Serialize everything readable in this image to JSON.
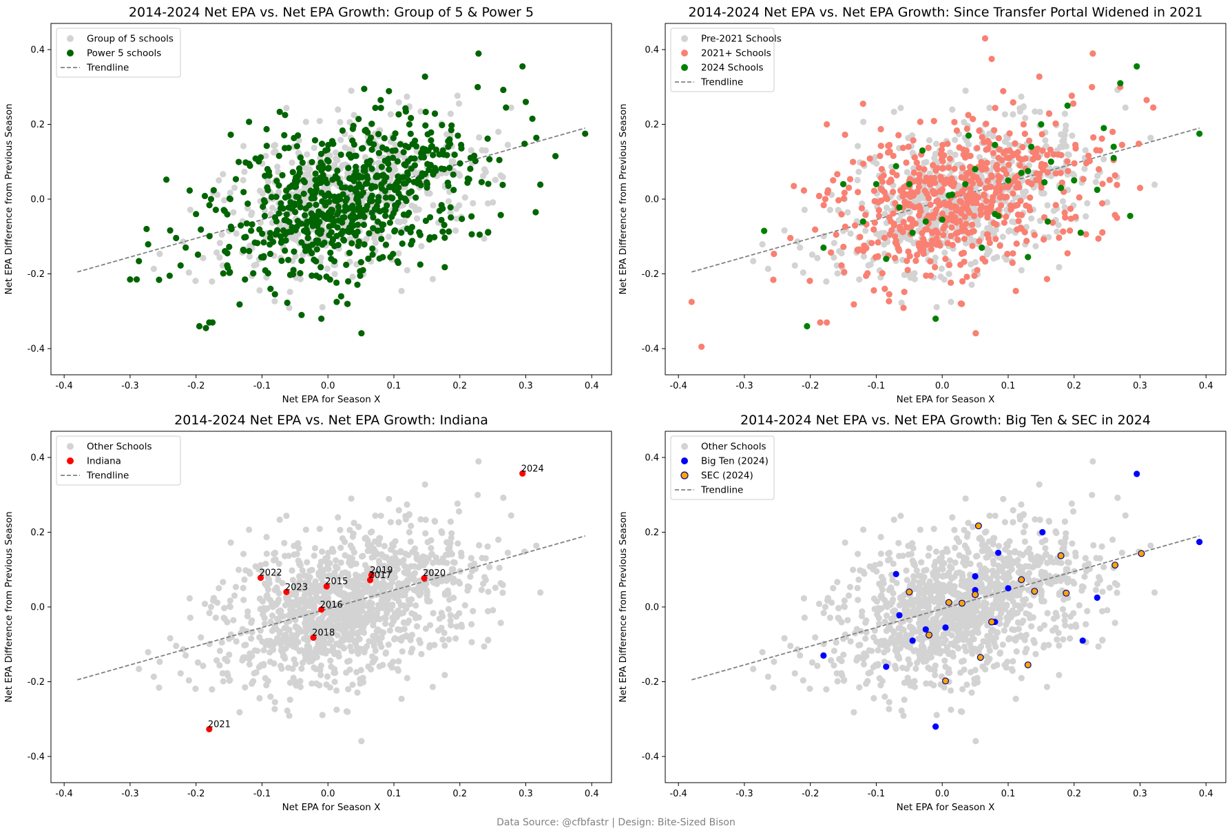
{
  "footer": "Data Source: @cfbfastr | Design: Bite-Sized Bison",
  "chart_data": [
    {
      "type": "scatter",
      "title": "2014-2024 Net EPA vs. Net EPA Growth: Group of 5 & Power 5",
      "xlabel": "Net EPA for Season X",
      "ylabel": "Net EPA Difference from Previous Season",
      "xlim": [
        -0.42,
        0.43
      ],
      "ylim": [
        -0.47,
        0.47
      ],
      "xticks": [
        "-0.4",
        "-0.3",
        "-0.2",
        "-0.1",
        "0.0",
        "0.1",
        "0.2",
        "0.3",
        "0.4"
      ],
      "yticks": [
        "-0.4",
        "-0.2",
        "0.0",
        "0.2",
        "0.4"
      ],
      "grid": false,
      "legend_position": "upper-left",
      "background_series": {
        "name": "Group of 5 schools",
        "color": "#d3d3d3"
      },
      "trendline": {
        "name": "Trendline",
        "color": "#808080",
        "x": [
          -0.38,
          0.39
        ],
        "y": [
          -0.195,
          0.19
        ]
      },
      "series": [
        {
          "name": "Power 5 schools",
          "color": "#006400",
          "dense_cloud": true,
          "points": [
            [
              0.295,
              0.355
            ],
            [
              0.39,
              0.175
            ],
            [
              0.31,
              0.215
            ],
            [
              0.345,
              0.115
            ],
            [
              0.3,
              0.26
            ],
            [
              0.27,
              0.245
            ],
            [
              0.315,
              -0.035
            ],
            [
              -0.245,
              0.052
            ],
            [
              -0.275,
              -0.08
            ],
            [
              -0.3,
              -0.215
            ],
            [
              -0.29,
              -0.215
            ],
            [
              -0.24,
              -0.205
            ],
            [
              -0.195,
              -0.34
            ],
            [
              -0.185,
              -0.345
            ],
            [
              -0.18,
              -0.33
            ],
            [
              -0.175,
              -0.33
            ],
            [
              -0.2,
              -0.04
            ],
            [
              0.055,
              0.295
            ],
            [
              0.08,
              0.265
            ],
            [
              -0.065,
              0.225
            ],
            [
              -0.04,
              -0.31
            ],
            [
              -0.01,
              -0.32
            ],
            [
              0.02,
              -0.26
            ],
            [
              0.14,
              -0.175
            ],
            [
              0.23,
              -0.095
            ]
          ]
        }
      ]
    },
    {
      "type": "scatter",
      "title": "2014-2024 Net EPA vs. Net EPA Growth: Since Transfer Portal Widened in 2021",
      "xlabel": "Net EPA for Season X",
      "ylabel": "Net EPA Difference from Previous Season",
      "xlim": [
        -0.42,
        0.43
      ],
      "ylim": [
        -0.47,
        0.47
      ],
      "xticks": [
        "-0.4",
        "-0.3",
        "-0.2",
        "-0.1",
        "0.0",
        "0.1",
        "0.2",
        "0.3",
        "0.4"
      ],
      "yticks": [
        "-0.4",
        "-0.2",
        "0.0",
        "0.2",
        "0.4"
      ],
      "grid": false,
      "legend_position": "upper-left",
      "background_series": {
        "name": "Pre-2021 Schools",
        "color": "#d3d3d3"
      },
      "trendline": {
        "name": "Trendline",
        "color": "#808080",
        "x": [
          -0.38,
          0.39
        ],
        "y": [
          -0.195,
          0.19
        ]
      },
      "series": [
        {
          "name": "2021+ Schools",
          "color": "#fa8072",
          "dense_cloud": true,
          "points": [
            [
              0.065,
              0.43
            ],
            [
              0.075,
              0.375
            ],
            [
              -0.38,
              -0.275
            ],
            [
              -0.365,
              -0.395
            ],
            [
              -0.185,
              -0.33
            ],
            [
              -0.175,
              -0.33
            ],
            [
              -0.12,
              0.255
            ],
            [
              -0.175,
              0.2
            ],
            [
              0.27,
              0.3
            ],
            [
              0.32,
              0.245
            ],
            [
              0.31,
              0.265
            ],
            [
              0.3,
              0.03
            ],
            [
              0.265,
              -0.05
            ],
            [
              0.19,
              -0.145
            ],
            [
              -0.225,
              0.035
            ]
          ]
        },
        {
          "name": "2024 Schools",
          "color": "#008000",
          "points": [
            [
              0.295,
              0.355
            ],
            [
              0.39,
              0.175
            ],
            [
              0.27,
              0.31
            ],
            [
              0.15,
              0.2
            ],
            [
              0.19,
              0.25
            ],
            [
              0.26,
              0.14
            ],
            [
              0.245,
              0.19
            ],
            [
              0.26,
              0.11
            ],
            [
              0.2,
              0.05
            ],
            [
              0.235,
              0.025
            ],
            [
              0.285,
              -0.045
            ],
            [
              0.21,
              -0.09
            ],
            [
              0.18,
              0.03
            ],
            [
              0.13,
              0.075
            ],
            [
              0.1,
              0.05
            ],
            [
              0.12,
              0.07
            ],
            [
              0.08,
              0.145
            ],
            [
              0.05,
              0.08
            ],
            [
              0.035,
              0.04
            ],
            [
              0.015,
              0.012
            ],
            [
              0.01,
              0.01
            ],
            [
              -0.05,
              0.04
            ],
            [
              -0.07,
              0.088
            ],
            [
              -0.065,
              -0.022
            ],
            [
              -0.1,
              0.04
            ],
            [
              -0.085,
              -0.16
            ],
            [
              -0.18,
              -0.13
            ],
            [
              -0.205,
              -0.34
            ],
            [
              -0.27,
              -0.085
            ],
            [
              -0.01,
              -0.32
            ],
            [
              0.0,
              -0.055
            ],
            [
              -0.045,
              -0.09
            ],
            [
              -0.025,
              -0.06
            ],
            [
              0.06,
              -0.13
            ],
            [
              0.08,
              -0.04
            ],
            [
              0.085,
              -0.045
            ],
            [
              0.13,
              -0.155
            ],
            [
              0.16,
              -0.06
            ],
            [
              0.155,
              0.045
            ],
            [
              0.135,
              0.14
            ],
            [
              0.165,
              0.1
            ],
            [
              -0.15,
              0.04
            ],
            [
              -0.12,
              -0.06
            ],
            [
              -0.03,
              0.13
            ],
            [
              0.04,
              0.17
            ]
          ]
        }
      ]
    },
    {
      "type": "scatter",
      "title": "2014-2024 Net EPA vs. Net EPA Growth: Indiana",
      "xlabel": "Net EPA for Season X",
      "ylabel": "Net EPA Difference from Previous Season",
      "xlim": [
        -0.42,
        0.43
      ],
      "ylim": [
        -0.47,
        0.47
      ],
      "xticks": [
        "-0.4",
        "-0.3",
        "-0.2",
        "-0.1",
        "0.0",
        "0.1",
        "0.2",
        "0.3",
        "0.4"
      ],
      "yticks": [
        "-0.4",
        "-0.2",
        "0.0",
        "0.2",
        "0.4"
      ],
      "grid": false,
      "legend_position": "upper-left",
      "background_series": {
        "name": "Other Schools",
        "color": "#d3d3d3"
      },
      "trendline": {
        "name": "Trendline",
        "color": "#808080",
        "x": [
          -0.38,
          0.39
        ],
        "y": [
          -0.195,
          0.19
        ]
      },
      "series": [
        {
          "name": "Indiana",
          "color": "#ff0000",
          "points": [
            [
              0.295,
              0.357,
              "2024"
            ],
            [
              -0.102,
              0.078,
              "2022"
            ],
            [
              -0.063,
              0.04,
              "2023"
            ],
            [
              -0.002,
              0.055,
              "2015"
            ],
            [
              0.066,
              0.085,
              "2019"
            ],
            [
              0.064,
              0.072,
              "2017"
            ],
            [
              0.146,
              0.077,
              "2020"
            ],
            [
              -0.01,
              -0.007,
              "2016"
            ],
            [
              -0.022,
              -0.082,
              "2018"
            ],
            [
              -0.18,
              -0.327,
              "2021"
            ]
          ]
        }
      ]
    },
    {
      "type": "scatter",
      "title": "2014-2024 Net EPA vs. Net EPA Growth: Big Ten & SEC in 2024",
      "xlabel": "Net EPA for Season X",
      "ylabel": "Net EPA Difference from Previous Season",
      "xlim": [
        -0.42,
        0.43
      ],
      "ylim": [
        -0.47,
        0.47
      ],
      "xticks": [
        "-0.4",
        "-0.3",
        "-0.2",
        "-0.1",
        "0.0",
        "0.1",
        "0.2",
        "0.3",
        "0.4"
      ],
      "yticks": [
        "-0.4",
        "-0.2",
        "0.0",
        "0.2",
        "0.4"
      ],
      "grid": false,
      "legend_position": "upper-left",
      "background_series": {
        "name": "Other Schools",
        "color": "#d3d3d3"
      },
      "trendline": {
        "name": "Trendline",
        "color": "#808080",
        "x": [
          -0.38,
          0.39
        ],
        "y": [
          -0.195,
          0.19
        ]
      },
      "series": [
        {
          "name": "Big Ten (2024)",
          "color": "#0000ff",
          "points": [
            [
              0.295,
              0.356
            ],
            [
              0.39,
              0.174
            ],
            [
              0.152,
              0.2
            ],
            [
              0.085,
              0.145
            ],
            [
              -0.07,
              0.088
            ],
            [
              0.05,
              0.082
            ],
            [
              0.1,
              0.05
            ],
            [
              0.05,
              0.045
            ],
            [
              0.235,
              0.025
            ],
            [
              -0.065,
              -0.022
            ],
            [
              0.08,
              -0.04
            ],
            [
              -0.025,
              -0.06
            ],
            [
              0.005,
              -0.055
            ],
            [
              -0.045,
              -0.09
            ],
            [
              0.213,
              -0.09
            ],
            [
              -0.18,
              -0.13
            ],
            [
              -0.085,
              -0.16
            ],
            [
              -0.01,
              -0.32
            ]
          ]
        },
        {
          "name": "SEC (2024)",
          "color": "#ffa500",
          "edge_color": "#00008b",
          "points": [
            [
              0.055,
              0.217
            ],
            [
              0.18,
              0.137
            ],
            [
              0.262,
              0.112
            ],
            [
              0.302,
              0.143
            ],
            [
              0.12,
              0.073
            ],
            [
              0.14,
              0.042
            ],
            [
              0.188,
              0.037
            ],
            [
              0.05,
              0.033
            ],
            [
              -0.05,
              0.04
            ],
            [
              0.01,
              0.012
            ],
            [
              0.03,
              0.01
            ],
            [
              0.075,
              -0.04
            ],
            [
              -0.02,
              -0.075
            ],
            [
              0.058,
              -0.135
            ],
            [
              0.13,
              -0.155
            ],
            [
              0.005,
              -0.198
            ]
          ]
        }
      ]
    }
  ]
}
